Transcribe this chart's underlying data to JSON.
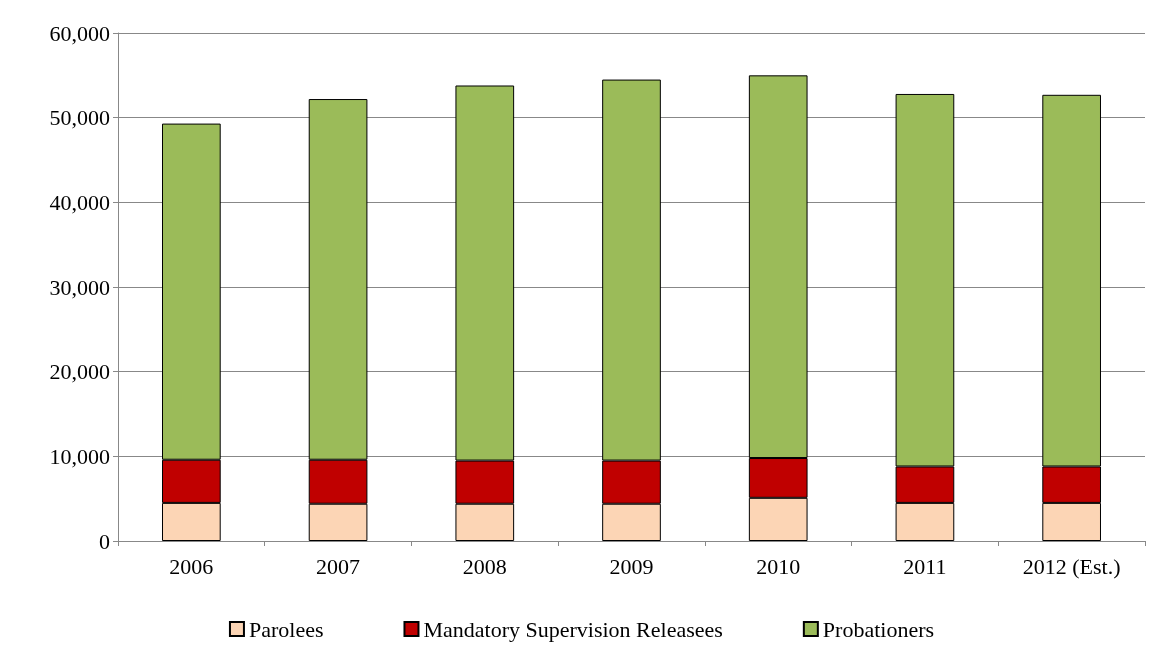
{
  "chart_data": {
    "type": "bar",
    "stacked": true,
    "categories": [
      "2006",
      "2007",
      "2008",
      "2009",
      "2010",
      "2011",
      "2012 (Est.)"
    ],
    "series": [
      {
        "name": "Parolees",
        "color": "#fcd5b5",
        "values": [
          4500,
          4400,
          4400,
          4400,
          5100,
          4500,
          4500
        ]
      },
      {
        "name": "Mandatory Supervision Releasees",
        "color": "#c00000",
        "values": [
          5100,
          5200,
          5100,
          5100,
          4700,
          4300,
          4300
        ]
      },
      {
        "name": "Probationers",
        "color": "#9bbb59",
        "values": [
          39700,
          42600,
          44300,
          45000,
          45200,
          44000,
          43900
        ]
      }
    ],
    "ylim": [
      0,
      60000
    ],
    "yticks": [
      0,
      {
        "value": 10000,
        "label": "10,000"
      },
      {
        "value": 20000,
        "label": "20,000"
      },
      {
        "value": 30000,
        "label": "30,000"
      },
      {
        "value": 40000,
        "label": "40,000"
      },
      {
        "value": 50000,
        "label": "50,000"
      },
      {
        "value": 60000,
        "label": "60,000"
      }
    ],
    "grid": "y",
    "legend": "bottom"
  }
}
